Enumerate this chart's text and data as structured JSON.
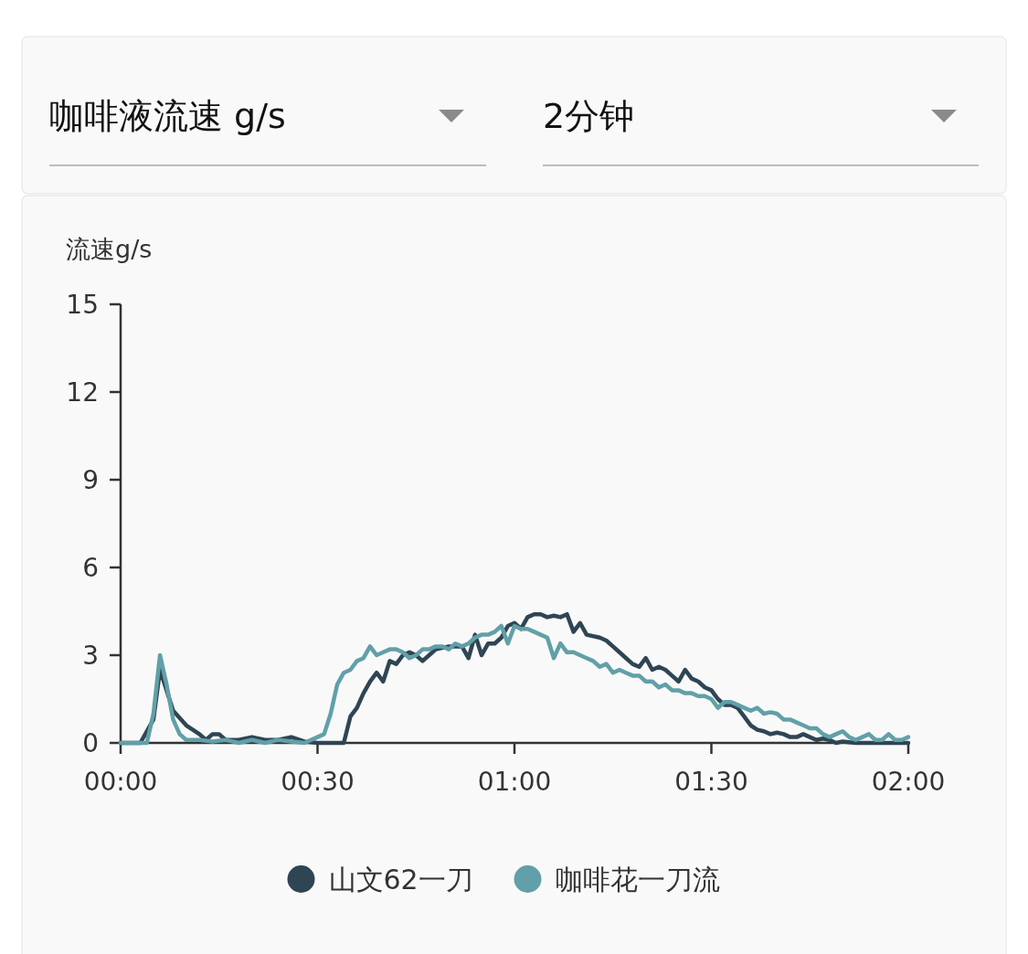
{
  "chart_data": {
    "type": "line",
    "title": "咖啡液流速 g/s",
    "subtitle": "2分钟",
    "ylabel": "流速g/s",
    "xlim": [
      0,
      120
    ],
    "xticks": [
      {
        "value": 0,
        "label": "00:00"
      },
      {
        "value": 30,
        "label": "00:30"
      },
      {
        "value": 60,
        "label": "01:00"
      },
      {
        "value": 90,
        "label": "01:30"
      },
      {
        "value": 120,
        "label": "02:00"
      }
    ],
    "ylim": [
      0,
      15
    ],
    "yticks": [
      0,
      3,
      6,
      9,
      12,
      15
    ],
    "legend": "bottom",
    "series": [
      {
        "name": "山文62一刀",
        "color": "#2f4554",
        "x": [
          0,
          3,
          5,
          6,
          7,
          8,
          10,
          12,
          13,
          14,
          15,
          16,
          18,
          20,
          22,
          24,
          26,
          28,
          30,
          32,
          34,
          35,
          36,
          37,
          38,
          39,
          40,
          41,
          42,
          43,
          44,
          45,
          46,
          47,
          48,
          50,
          52,
          53,
          54,
          55,
          56,
          57,
          58,
          59,
          60,
          61,
          62,
          63,
          64,
          65,
          66,
          67,
          68,
          69,
          70,
          71,
          73,
          74,
          75,
          76,
          77,
          78,
          79,
          80,
          81,
          82,
          83,
          84,
          85,
          86,
          87,
          88,
          89,
          90,
          91,
          92,
          93,
          94,
          95,
          96,
          97,
          98,
          99,
          100,
          101,
          102,
          103,
          104,
          105,
          106,
          107,
          108,
          109,
          110,
          112,
          115,
          120
        ],
        "values": [
          0,
          0,
          0.8,
          2.5,
          1.8,
          1.1,
          0.6,
          0.3,
          0.1,
          0.3,
          0.3,
          0.1,
          0.1,
          0.2,
          0.1,
          0.1,
          0.2,
          0.05,
          0,
          0,
          0,
          0.9,
          1.2,
          1.7,
          2.1,
          2.4,
          2.1,
          2.8,
          2.7,
          3.0,
          3.1,
          3.0,
          2.8,
          3.0,
          3.2,
          3.3,
          3.3,
          2.9,
          3.7,
          3.0,
          3.4,
          3.4,
          3.6,
          4.0,
          4.1,
          3.9,
          4.3,
          4.4,
          4.4,
          4.3,
          4.35,
          4.3,
          4.4,
          3.8,
          4.1,
          3.7,
          3.6,
          3.5,
          3.3,
          3.1,
          2.9,
          2.7,
          2.6,
          2.9,
          2.5,
          2.6,
          2.5,
          2.3,
          2.1,
          2.5,
          2.2,
          2.1,
          1.9,
          1.8,
          1.5,
          1.3,
          1.3,
          1.2,
          0.9,
          0.6,
          0.45,
          0.4,
          0.3,
          0.35,
          0.3,
          0.2,
          0.2,
          0.3,
          0.2,
          0.1,
          0.15,
          0.1,
          0,
          0.05,
          0,
          0,
          0
        ]
      },
      {
        "name": "咖啡花一刀流",
        "color": "#61a0a8",
        "x": [
          0,
          4,
          5,
          6,
          7,
          8,
          9,
          10,
          12,
          14,
          16,
          18,
          20,
          22,
          24,
          26,
          28,
          30,
          31,
          32,
          33,
          34,
          35,
          36,
          37,
          38,
          39,
          40,
          41,
          42,
          43,
          44,
          45,
          46,
          47,
          48,
          49,
          50,
          51,
          52,
          53,
          54,
          55,
          56,
          57,
          58,
          59,
          60,
          61,
          62,
          63,
          64,
          65,
          66,
          67,
          68,
          69,
          70,
          71,
          72,
          73,
          74,
          75,
          76,
          77,
          78,
          79,
          80,
          81,
          82,
          83,
          84,
          85,
          86,
          87,
          88,
          89,
          90,
          91,
          92,
          93,
          94,
          95,
          96,
          97,
          98,
          99,
          100,
          101,
          102,
          103,
          104,
          105,
          106,
          107,
          108,
          109,
          110,
          111,
          112,
          113,
          114,
          115,
          116,
          117,
          118,
          119,
          120
        ],
        "values": [
          0,
          0,
          1.0,
          3.0,
          2.0,
          0.8,
          0.3,
          0.1,
          0.1,
          0.05,
          0.1,
          0,
          0.1,
          0,
          0.1,
          0.05,
          0,
          0.2,
          0.3,
          1.0,
          2.0,
          2.4,
          2.5,
          2.8,
          2.9,
          3.3,
          3.0,
          3.1,
          3.2,
          3.2,
          3.1,
          2.9,
          3.0,
          3.2,
          3.2,
          3.3,
          3.3,
          3.2,
          3.4,
          3.3,
          3.4,
          3.6,
          3.7,
          3.7,
          3.8,
          4.0,
          3.4,
          4.0,
          3.9,
          3.9,
          3.8,
          3.7,
          3.6,
          2.9,
          3.4,
          3.1,
          3.1,
          3.0,
          2.9,
          2.8,
          2.6,
          2.7,
          2.4,
          2.5,
          2.4,
          2.3,
          2.3,
          2.1,
          2.1,
          1.9,
          2.0,
          1.8,
          1.8,
          1.7,
          1.7,
          1.6,
          1.6,
          1.5,
          1.2,
          1.4,
          1.4,
          1.3,
          1.2,
          1.1,
          1.2,
          1.0,
          1.05,
          1.0,
          0.8,
          0.8,
          0.7,
          0.6,
          0.5,
          0.5,
          0.3,
          0.2,
          0.3,
          0.4,
          0.2,
          0.1,
          0.2,
          0.3,
          0.1,
          0.1,
          0.3,
          0.1,
          0.1,
          0.2
        ]
      }
    ]
  }
}
